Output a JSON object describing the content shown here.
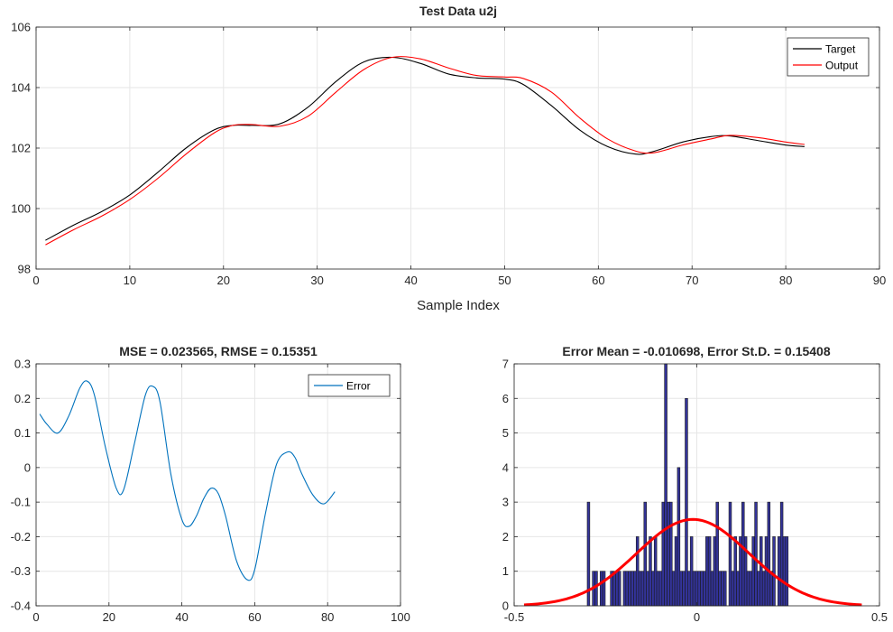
{
  "chart_data": [
    {
      "type": "line",
      "title": "Test Data u2j",
      "xlabel": "Sample Index",
      "ylabel": "",
      "xlim": [
        0,
        90
      ],
      "ylim": [
        98,
        106
      ],
      "xticks": [
        0,
        10,
        20,
        30,
        40,
        50,
        60,
        70,
        80,
        90
      ],
      "yticks": [
        98,
        100,
        102,
        104,
        106
      ],
      "grid": true,
      "legend": "top-right",
      "series": [
        {
          "name": "Target",
          "color": "#000000",
          "x": [
            1,
            4,
            7,
            10,
            13,
            16,
            19,
            21,
            23,
            26,
            29,
            32,
            35,
            38,
            41,
            44,
            47,
            50,
            52,
            55,
            58,
            61,
            64,
            66,
            69,
            72,
            74,
            77,
            80,
            82
          ],
          "y": [
            98.95,
            99.45,
            99.9,
            100.45,
            101.2,
            102.0,
            102.6,
            102.75,
            102.75,
            102.8,
            103.35,
            104.2,
            104.85,
            105.0,
            104.8,
            104.45,
            104.32,
            104.28,
            104.1,
            103.4,
            102.6,
            102.05,
            101.8,
            101.9,
            102.2,
            102.38,
            102.4,
            102.25,
            102.1,
            102.05
          ]
        },
        {
          "name": "Output",
          "color": "#ff0000",
          "x": [
            1,
            4,
            7,
            10,
            13,
            16,
            19,
            21,
            23,
            26,
            29,
            32,
            35,
            38,
            41,
            44,
            47,
            50,
            52,
            55,
            58,
            61,
            64,
            66,
            69,
            72,
            74,
            77,
            80,
            82
          ],
          "y": [
            98.8,
            99.3,
            99.75,
            100.3,
            101.0,
            101.8,
            102.5,
            102.75,
            102.78,
            102.72,
            103.05,
            103.85,
            104.6,
            105.0,
            104.95,
            104.65,
            104.4,
            104.35,
            104.3,
            103.85,
            103.0,
            102.3,
            101.9,
            101.85,
            102.1,
            102.3,
            102.42,
            102.35,
            102.2,
            102.12
          ]
        }
      ]
    },
    {
      "type": "line",
      "title": "MSE = 0.023565, RMSE = 0.15351",
      "xlabel": "",
      "ylabel": "",
      "xlim": [
        0,
        100
      ],
      "ylim": [
        -0.4,
        0.3
      ],
      "xticks": [
        0,
        20,
        40,
        60,
        80,
        100
      ],
      "yticks": [
        -0.4,
        -0.3,
        -0.2,
        -0.1,
        0,
        0.1,
        0.2,
        0.3
      ],
      "grid": true,
      "legend": "top-right",
      "series": [
        {
          "name": "Error",
          "color": "#0072bd",
          "x": [
            1,
            3,
            6,
            9,
            12,
            14,
            16,
            19,
            22,
            24,
            27,
            30,
            32,
            34,
            37,
            40,
            42,
            44,
            46,
            48,
            50,
            52,
            55,
            58,
            60,
            63,
            66,
            69,
            71,
            73,
            76,
            79,
            82
          ],
          "y": [
            0.155,
            0.125,
            0.1,
            0.15,
            0.23,
            0.25,
            0.21,
            0.06,
            -0.06,
            -0.065,
            0.07,
            0.21,
            0.235,
            0.19,
            -0.02,
            -0.15,
            -0.17,
            -0.14,
            -0.09,
            -0.06,
            -0.075,
            -0.14,
            -0.27,
            -0.325,
            -0.295,
            -0.13,
            0.01,
            0.045,
            0.03,
            -0.02,
            -0.08,
            -0.105,
            -0.07
          ]
        }
      ]
    },
    {
      "type": "bar",
      "title": "Error Mean = -0.010698, Error St.D. = 0.15408",
      "xlabel": "",
      "ylabel": "",
      "xlim": [
        -0.5,
        0.5
      ],
      "ylim": [
        0,
        7
      ],
      "xticks": [
        -0.5,
        0,
        0.5
      ],
      "yticks": [
        0,
        1,
        2,
        3,
        4,
        5,
        6,
        7
      ],
      "grid": true,
      "bin_edges": [
        -0.3,
        0.25
      ],
      "bar_color": "#333399",
      "values": [
        3,
        0,
        1,
        1,
        0,
        1,
        1,
        0,
        0,
        1,
        1,
        1,
        1,
        0,
        1,
        1,
        1,
        1,
        1,
        2,
        1,
        1,
        3,
        1,
        2,
        1,
        2,
        1,
        1,
        3,
        7,
        3,
        3,
        1,
        2,
        4,
        1,
        1,
        6,
        1,
        2,
        1,
        1,
        1,
        1,
        1,
        2,
        2,
        1,
        2,
        3,
        1,
        1,
        1,
        0,
        3,
        1,
        2,
        1,
        2,
        3,
        2,
        1,
        1,
        2,
        3,
        1,
        2,
        1,
        2,
        3,
        1,
        2,
        0,
        2,
        3,
        2,
        2
      ],
      "fit_curve": {
        "type": "normal",
        "mean": -0.010698,
        "std": 0.15408,
        "peak": 2.5,
        "color": "#ff0000"
      }
    }
  ]
}
